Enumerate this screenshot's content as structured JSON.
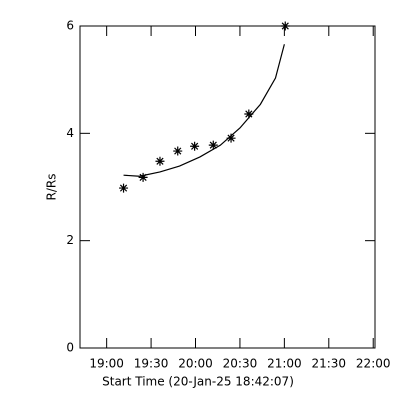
{
  "chart_data": {
    "type": "scatter",
    "xlabel": "Start Time (20-Jan-25 18:42:07)",
    "ylabel": "R/Rs",
    "xlim": [
      18.7,
      22.02
    ],
    "ylim": [
      0,
      6
    ],
    "xticks": [
      {
        "value": 19.0,
        "label": "19:00"
      },
      {
        "value": 19.5,
        "label": "19:30"
      },
      {
        "value": 20.0,
        "label": "20:00"
      },
      {
        "value": 20.5,
        "label": "20:30"
      },
      {
        "value": 21.0,
        "label": "21:00"
      },
      {
        "value": 21.5,
        "label": "21:30"
      },
      {
        "value": 22.0,
        "label": "22:00"
      }
    ],
    "yticks": [
      0,
      2,
      4,
      6
    ],
    "series": [
      {
        "style": "marker",
        "marker": "asterisk",
        "color": "#000000",
        "x": [
          19.19,
          19.41,
          19.6,
          19.8,
          19.99,
          20.2,
          20.4,
          20.6,
          21.01
        ],
        "values": [
          2.98,
          3.18,
          3.48,
          3.67,
          3.76,
          3.78,
          3.91,
          4.36,
          6.0
        ]
      },
      {
        "style": "line",
        "color": "#000000",
        "x": [
          19.19,
          19.37,
          19.6,
          19.82,
          20.05,
          20.28,
          20.5,
          20.73,
          20.9,
          21.0
        ],
        "values": [
          3.22,
          3.2,
          3.28,
          3.39,
          3.56,
          3.78,
          4.1,
          4.54,
          5.03,
          5.66
        ]
      }
    ]
  }
}
